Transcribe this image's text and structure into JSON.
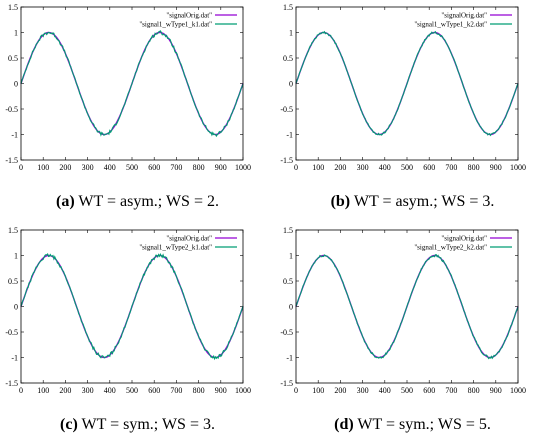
{
  "chart_data": [
    {
      "type": "line",
      "panel_id": "a",
      "caption_letter": "(a)",
      "caption_text": "WT = asym.; WS = 2.",
      "xlim": [
        0,
        1000
      ],
      "ylim": [
        -1.5,
        1.5
      ],
      "x_ticks": [
        "0",
        "100",
        "200",
        "300",
        "400",
        "500",
        "600",
        "700",
        "800",
        "900",
        "1000"
      ],
      "y_ticks": [
        "1.5",
        "1",
        "0.5",
        "0",
        "-0.5",
        "-1",
        "-1.5"
      ],
      "legend_position": "top-right",
      "series": [
        {
          "name": "\"signalOrig.dat\"",
          "color": "#9400d3",
          "period": 500,
          "amplitude": 1.0,
          "noise": 0.0
        },
        {
          "name": "\"signal1_wType1_k1.dat\"",
          "color": "#009e73",
          "period": 500,
          "amplitude": 1.0,
          "noise": 0.035
        }
      ]
    },
    {
      "type": "line",
      "panel_id": "b",
      "caption_letter": "(b)",
      "caption_text": "WT = asym.; WS = 3.",
      "xlim": [
        0,
        1000
      ],
      "ylim": [
        -1.5,
        1.5
      ],
      "x_ticks": [
        "0",
        "100",
        "200",
        "300",
        "400",
        "500",
        "600",
        "700",
        "800",
        "900",
        "1000"
      ],
      "y_ticks": [
        "1.5",
        "1",
        "0.5",
        "0",
        "-0.5",
        "-1",
        "-1.5"
      ],
      "legend_position": "top-right",
      "series": [
        {
          "name": "\"signalOrig.dat\"",
          "color": "#9400d3",
          "period": 500,
          "amplitude": 1.0,
          "noise": 0.0
        },
        {
          "name": "\"signal1_wType1_k2.dat\"",
          "color": "#009e73",
          "period": 500,
          "amplitude": 1.0,
          "noise": 0.02
        }
      ]
    },
    {
      "type": "line",
      "panel_id": "c",
      "caption_letter": "(c)",
      "caption_text": "WT = sym.; WS = 3.",
      "xlim": [
        0,
        1000
      ],
      "ylim": [
        -1.5,
        1.5
      ],
      "x_ticks": [
        "0",
        "100",
        "200",
        "300",
        "400",
        "500",
        "600",
        "700",
        "800",
        "900",
        "1000"
      ],
      "y_ticks": [
        "1.5",
        "1",
        "0.5",
        "0",
        "-0.5",
        "-1",
        "-1.5"
      ],
      "legend_position": "top-right",
      "series": [
        {
          "name": "\"signalOrig.dat\"",
          "color": "#9400d3",
          "period": 500,
          "amplitude": 1.0,
          "noise": 0.0
        },
        {
          "name": "\"signal1_wType2_k1.dat\"",
          "color": "#009e73",
          "period": 500,
          "amplitude": 1.0,
          "noise": 0.035
        }
      ]
    },
    {
      "type": "line",
      "panel_id": "d",
      "caption_letter": "(d)",
      "caption_text": "WT = sym.; WS = 5.",
      "xlim": [
        0,
        1000
      ],
      "ylim": [
        -1.5,
        1.5
      ],
      "x_ticks": [
        "0",
        "100",
        "200",
        "300",
        "400",
        "500",
        "600",
        "700",
        "800",
        "900",
        "1000"
      ],
      "y_ticks": [
        "1.5",
        "1",
        "0.5",
        "0",
        "-0.5",
        "-1",
        "-1.5"
      ],
      "legend_position": "top-right",
      "series": [
        {
          "name": "\"signalOrig.dat\"",
          "color": "#9400d3",
          "period": 500,
          "amplitude": 1.0,
          "noise": 0.0
        },
        {
          "name": "\"signal1_wType2_k2.dat\"",
          "color": "#009e73",
          "period": 500,
          "amplitude": 1.0,
          "noise": 0.025
        }
      ]
    }
  ]
}
